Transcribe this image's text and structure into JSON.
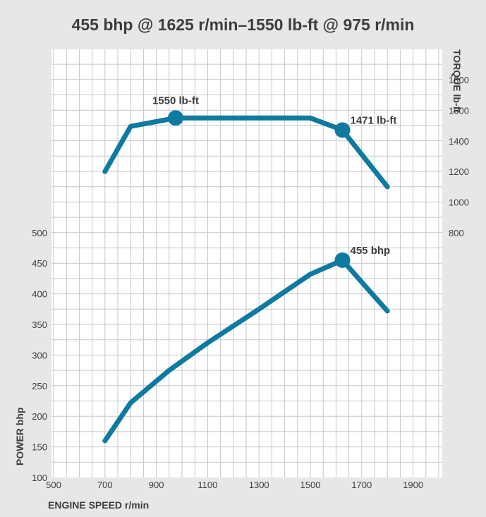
{
  "chart_data": {
    "type": "line",
    "title": "455 bhp @ 1625 r/min–1550 lb-ft @ 975 r/min",
    "xlabel": "ENGINE SPEED r/min",
    "xlim": [
      500,
      2000
    ],
    "xticks": [
      500,
      700,
      900,
      1100,
      1300,
      1500,
      1700,
      1900
    ],
    "grid": true,
    "y_left": {
      "label": "POWER bhp",
      "lim": [
        100,
        600
      ],
      "ticks": [
        100,
        150,
        200,
        250,
        300,
        350,
        400,
        450,
        500
      ]
    },
    "y_right": {
      "label": "TORQUE lb-ft",
      "lim": [
        0,
        2000
      ],
      "ticks": [
        800,
        1000,
        1200,
        1400,
        1600,
        1800
      ]
    },
    "series": [
      {
        "name": "TORQUE lb-ft",
        "axis": "right",
        "color": "#0e7aa0",
        "x": [
          700,
          800,
          975,
          1100,
          1300,
          1500,
          1625,
          1800
        ],
        "y": [
          1200,
          1495,
          1550,
          1550,
          1550,
          1550,
          1471,
          1100
        ]
      },
      {
        "name": "POWER bhp",
        "axis": "left",
        "color": "#0e7aa0",
        "x": [
          700,
          800,
          950,
          1100,
          1300,
          1500,
          1625,
          1730,
          1800
        ],
        "y": [
          160,
          222,
          275,
          320,
          375,
          432,
          455,
          405,
          372
        ]
      }
    ],
    "annotations": [
      {
        "series": 0,
        "x": 975,
        "y": 1550,
        "label": "1550 lb-ft",
        "pos": "above"
      },
      {
        "series": 0,
        "x": 1625,
        "y": 1471,
        "label": "1471 lb-ft",
        "pos": "right"
      },
      {
        "series": 1,
        "x": 1625,
        "y": 455,
        "label": "455 bhp",
        "pos": "right"
      }
    ]
  }
}
